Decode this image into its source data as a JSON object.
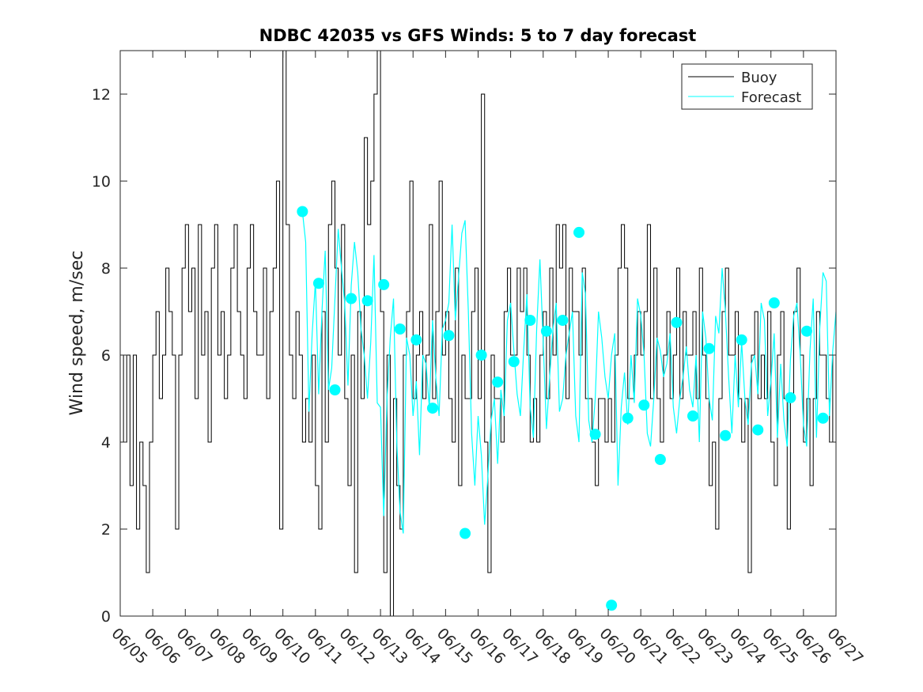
{
  "chart_data": {
    "type": "line",
    "title": "NDBC 42035 vs GFS Winds: 5 to 7 day forecast",
    "xlabel": "",
    "ylabel": "Wind speed, m/sec",
    "xlim": [
      0,
      22
    ],
    "ylim": [
      0,
      13
    ],
    "x_tick_labels": [
      "06/05",
      "06/06",
      "06/07",
      "06/08",
      "06/09",
      "06/10",
      "06/11",
      "06/12",
      "06/13",
      "06/14",
      "06/15",
      "06/16",
      "06/17",
      "06/18",
      "06/19",
      "06/20",
      "06/21",
      "06/22",
      "06/23",
      "06/24",
      "06/25",
      "06/26",
      "06/27"
    ],
    "y_ticks": [
      0,
      2,
      4,
      6,
      8,
      10,
      12
    ],
    "grid": false,
    "legend_position": "top-right",
    "colors": {
      "buoy": "#000000",
      "forecast": "#00ffff",
      "axis": "#262626"
    },
    "series": [
      {
        "name": "Buoy",
        "style": "line",
        "x": [
          0.0,
          0.1,
          0.2,
          0.3,
          0.4,
          0.5,
          0.6,
          0.7,
          0.8,
          0.9,
          1.0,
          1.1,
          1.2,
          1.3,
          1.4,
          1.5,
          1.6,
          1.7,
          1.8,
          1.9,
          2.0,
          2.1,
          2.2,
          2.3,
          2.4,
          2.5,
          2.6,
          2.7,
          2.8,
          2.9,
          3.0,
          3.1,
          3.2,
          3.3,
          3.4,
          3.5,
          3.6,
          3.7,
          3.8,
          3.9,
          4.0,
          4.1,
          4.2,
          4.3,
          4.4,
          4.5,
          4.6,
          4.7,
          4.8,
          4.9,
          5.0,
          5.1,
          5.2,
          5.3,
          5.4,
          5.5,
          5.6,
          5.7,
          5.8,
          5.9,
          6.0,
          6.1,
          6.2,
          6.3,
          6.4,
          6.5,
          6.6,
          6.7,
          6.8,
          6.9,
          7.0,
          7.1,
          7.2,
          7.3,
          7.4,
          7.5,
          7.6,
          7.7,
          7.8,
          7.9,
          8.0,
          8.1,
          8.2,
          8.3,
          8.4,
          8.5,
          8.6,
          8.7,
          8.8,
          8.9,
          9.0,
          9.1,
          9.2,
          9.3,
          9.4,
          9.5,
          9.6,
          9.7,
          9.8,
          9.9,
          10.0,
          10.1,
          10.2,
          10.3,
          10.4,
          10.5,
          10.6,
          10.7,
          10.8,
          10.9,
          11.0,
          11.1,
          11.2,
          11.3,
          11.4,
          11.5,
          11.6,
          11.7,
          11.8,
          11.9,
          12.0,
          12.1,
          12.2,
          12.3,
          12.4,
          12.5,
          12.6,
          12.7,
          12.8,
          12.9,
          13.0,
          13.1,
          13.2,
          13.3,
          13.4,
          13.5,
          13.6,
          13.7,
          13.8,
          13.9,
          14.0,
          14.1,
          14.2,
          14.3,
          14.4,
          14.5,
          14.6,
          14.7,
          14.8,
          14.9,
          15.0,
          15.1,
          15.2,
          15.3,
          15.4,
          15.5,
          15.6,
          15.7,
          15.8,
          15.9,
          16.0,
          16.1,
          16.2,
          16.3,
          16.4,
          16.5,
          16.6,
          16.7,
          16.8,
          16.9,
          17.0,
          17.1,
          17.2,
          17.3,
          17.4,
          17.5,
          17.6,
          17.7,
          17.8,
          17.9,
          18.0,
          18.1,
          18.2,
          18.3,
          18.4,
          18.5,
          18.6,
          18.7,
          18.8,
          18.9,
          19.0,
          19.1,
          19.2,
          19.3,
          19.4,
          19.5,
          19.6,
          19.7,
          19.8,
          19.9,
          20.0,
          20.1,
          20.2,
          20.3,
          20.4,
          20.5,
          20.6,
          20.7,
          20.8,
          20.9,
          21.0,
          21.1,
          21.2,
          21.3,
          21.4,
          21.5,
          21.6,
          21.7,
          21.8,
          21.9,
          22.0
        ],
        "y": [
          6,
          4,
          6,
          3,
          6,
          2,
          4,
          3,
          1,
          4,
          6,
          7,
          5,
          6,
          8,
          7,
          6,
          2,
          6,
          8,
          9,
          7,
          8,
          5,
          9,
          6,
          7,
          4,
          8,
          9,
          6,
          7,
          5,
          6,
          8,
          9,
          7,
          6,
          5,
          8,
          9,
          7,
          6,
          6,
          8,
          5,
          7,
          8,
          10,
          2,
          13,
          9,
          6,
          5,
          7,
          6,
          4,
          5,
          4,
          6,
          3,
          2,
          7,
          4,
          9,
          10,
          8,
          6,
          9,
          5,
          3,
          6,
          1,
          7,
          5,
          11,
          9,
          10,
          12,
          13,
          7,
          1,
          6,
          0,
          5,
          3,
          2,
          6,
          7,
          10,
          5,
          6,
          7,
          5,
          6,
          9,
          5,
          7,
          10,
          6,
          7,
          5,
          4,
          8,
          3,
          6,
          5,
          5,
          7,
          8,
          5,
          12,
          4,
          1,
          6,
          5,
          5,
          4,
          7,
          8,
          6,
          6,
          8,
          7,
          8,
          6,
          4,
          5,
          4,
          6,
          7,
          5,
          8,
          6,
          9,
          8,
          9,
          5,
          8,
          7,
          7,
          6,
          8,
          5,
          5,
          4,
          3,
          5,
          5,
          4,
          5,
          4,
          6,
          8,
          9,
          8,
          5,
          5,
          6,
          7,
          6,
          7,
          9,
          5,
          8,
          5,
          4,
          6,
          7,
          5,
          6,
          8,
          5,
          7,
          6,
          6,
          7,
          5,
          8,
          6,
          5,
          3,
          4,
          2,
          5,
          7,
          8,
          6,
          6,
          7,
          5,
          4,
          5,
          1,
          6,
          7,
          5,
          6,
          5,
          7,
          4,
          3,
          6,
          7,
          5,
          2,
          5,
          7,
          8,
          6,
          4,
          5,
          3,
          5,
          7,
          6,
          6,
          5,
          4,
          6,
          5
        ]
      },
      {
        "name": "Forecast",
        "style": "line",
        "x": [
          5.6,
          5.7,
          5.8,
          5.9,
          6.0,
          6.1,
          6.2,
          6.3,
          6.4,
          6.5,
          6.6,
          6.7,
          6.8,
          6.9,
          7.0,
          7.1,
          7.2,
          7.3,
          7.4,
          7.5,
          7.6,
          7.7,
          7.8,
          7.9,
          8.0,
          8.1,
          8.2,
          8.3,
          8.4,
          8.5,
          8.6,
          8.7,
          8.8,
          8.9,
          9.0,
          9.1,
          9.2,
          9.3,
          9.4,
          9.5,
          9.6,
          9.7,
          9.8,
          9.9,
          10.0,
          10.1,
          10.2,
          10.3,
          10.4,
          10.5,
          10.6,
          10.7,
          10.8,
          10.9,
          11.0,
          11.1,
          11.2,
          11.3,
          11.4,
          11.5,
          11.6,
          11.7,
          11.8,
          11.9,
          12.0,
          12.1,
          12.2,
          12.3,
          12.4,
          12.5,
          12.6,
          12.7,
          12.8,
          12.9,
          13.0,
          13.1,
          13.2,
          13.3,
          13.4,
          13.5,
          13.6,
          13.7,
          13.8,
          13.9,
          14.0,
          14.1,
          14.2,
          14.3,
          14.4,
          14.5,
          14.6,
          14.7,
          14.8,
          14.9,
          15.0,
          15.1,
          15.2,
          15.3,
          15.4,
          15.5,
          15.6,
          15.7,
          15.8,
          15.9,
          16.0,
          16.1,
          16.2,
          16.3,
          16.4,
          16.5,
          16.6,
          16.7,
          16.8,
          16.9,
          17.0,
          17.1,
          17.2,
          17.3,
          17.4,
          17.5,
          17.6,
          17.7,
          17.8,
          17.9,
          18.0,
          18.1,
          18.2,
          18.3,
          18.4,
          18.5,
          18.6,
          18.7,
          18.8,
          18.9,
          19.0,
          19.1,
          19.2,
          19.3,
          19.4,
          19.5,
          19.6,
          19.7,
          19.8,
          19.9,
          20.0,
          20.1,
          20.2,
          20.3,
          20.4,
          20.5,
          20.6,
          20.7,
          20.8,
          20.9,
          21.0,
          21.1,
          21.2,
          21.3,
          21.4,
          21.5,
          21.6,
          21.7,
          21.8,
          21.9,
          22.0
        ],
        "y": [
          9.3,
          8.6,
          4.7,
          6.5,
          7.7,
          5.1,
          7.0,
          8.4,
          5.2,
          5.7,
          7.3,
          8.9,
          8.0,
          7.2,
          5.3,
          7.6,
          8.6,
          7.9,
          6.6,
          6.0,
          5.0,
          6.3,
          8.3,
          4.9,
          4.8,
          2.3,
          5.0,
          6.4,
          7.3,
          4.0,
          2.4,
          1.9,
          6.4,
          6.0,
          4.6,
          5.4,
          3.7,
          6.0,
          5.8,
          4.8,
          6.8,
          5.5,
          4.6,
          6.6,
          6.8,
          7.2,
          9.0,
          6.8,
          7.8,
          8.8,
          9.1,
          7.0,
          4.2,
          3.0,
          4.6,
          3.7,
          2.1,
          3.2,
          4.5,
          5.0,
          3.5,
          5.2,
          4.6,
          6.8,
          7.2,
          6.1,
          5.1,
          4.6,
          6.1,
          7.4,
          4.8,
          4.1,
          6.6,
          8.2,
          6.3,
          4.3,
          5.5,
          6.6,
          7.2,
          4.7,
          5.0,
          6.0,
          6.5,
          7.0,
          4.6,
          4.0,
          7.9,
          7.4,
          4.5,
          4.0,
          5.0,
          7.0,
          6.4,
          5.5,
          5.0,
          6.0,
          6.5,
          3.0,
          4.8,
          5.6,
          4.4,
          6.0,
          4.9,
          7.3,
          6.9,
          6.0,
          4.2,
          3.9,
          5.0,
          6.4,
          6.1,
          5.5,
          5.8,
          6.5,
          4.8,
          4.2,
          5.0,
          5.5,
          6.2,
          5.2,
          4.8,
          6.0,
          4.0,
          7.0,
          6.4,
          5.0,
          4.5,
          6.9,
          6.5,
          8.0,
          7.0,
          5.5,
          4.2,
          6.0,
          4.8,
          6.3,
          5.0,
          4.4,
          5.8,
          6.0,
          5.1,
          7.2,
          6.8,
          4.6,
          5.4,
          6.5,
          4.1,
          5.8,
          4.5,
          3.9,
          5.9,
          6.9,
          7.2,
          6.0,
          4.4,
          3.9,
          6.1,
          7.3,
          4.1,
          6.6,
          7.9,
          7.7,
          4.6,
          6.1,
          7.0
        ]
      },
      {
        "name": "",
        "style": "markers",
        "x": [
          5.6,
          6.1,
          6.6,
          7.1,
          7.6,
          8.1,
          8.6,
          9.1,
          9.6,
          10.1,
          10.6,
          11.1,
          11.6,
          12.1,
          12.6,
          13.1,
          13.6,
          14.1,
          14.6,
          15.1,
          15.6,
          16.1,
          16.6,
          17.1,
          17.6,
          18.1,
          18.6,
          19.1,
          19.6,
          20.1,
          20.6,
          21.1,
          21.6
        ],
        "y": [
          9.3,
          7.65,
          5.2,
          7.3,
          7.25,
          7.62,
          6.6,
          6.35,
          4.78,
          6.45,
          1.9,
          6.0,
          5.38,
          5.85,
          6.8,
          6.55,
          6.8,
          8.82,
          4.18,
          0.25,
          4.55,
          4.85,
          3.6,
          6.75,
          4.6,
          6.15,
          4.15,
          6.35,
          4.28,
          7.2,
          5.02,
          6.55,
          4.55
        ]
      }
    ]
  }
}
